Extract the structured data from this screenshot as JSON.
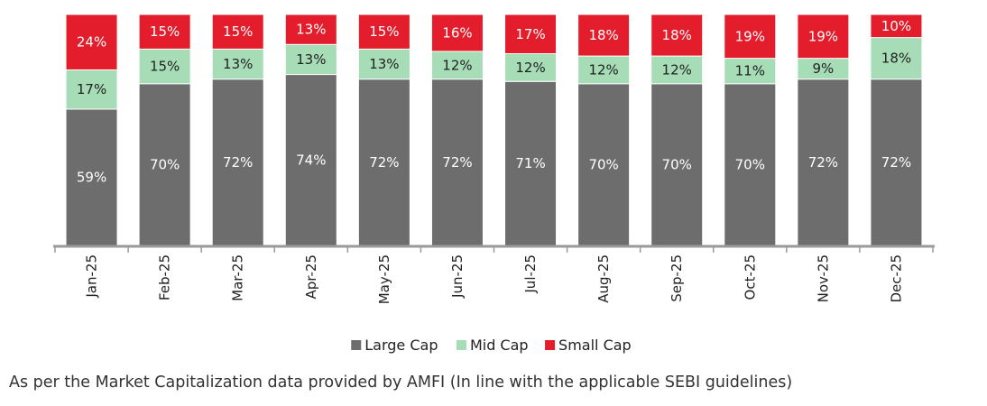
{
  "chart_data": {
    "type": "bar",
    "stacked": true,
    "normalized": true,
    "categories": [
      "Jan-25",
      "Feb-25",
      "Mar-25",
      "Apr-25",
      "May-25",
      "Jun-25",
      "Jul-25",
      "Aug-25",
      "Sep-25",
      "Oct-25",
      "Nov-25",
      "Dec-25"
    ],
    "series": [
      {
        "name": "Large Cap",
        "color": "#6d6d6d",
        "label_color": "#ffffff",
        "values": [
          59,
          70,
          72,
          74,
          72,
          72,
          71,
          70,
          70,
          70,
          72,
          72
        ],
        "labels": [
          "59%",
          "70%",
          "72%",
          "74%",
          "72%",
          "72%",
          "71%",
          "70%",
          "70%",
          "70%",
          "72%",
          "72%"
        ]
      },
      {
        "name": "Mid Cap",
        "color": "#a6dcb6",
        "label_color": "#222222",
        "values": [
          17,
          15,
          13,
          13,
          13,
          12,
          12,
          12,
          12,
          11,
          9,
          18
        ],
        "labels": [
          "17%",
          "15%",
          "13%",
          "13%",
          "13%",
          "12%",
          "12%",
          "12%",
          "12%",
          "11%",
          "9%",
          "18%"
        ]
      },
      {
        "name": "Small Cap",
        "color": "#e31d2b",
        "label_color": "#ffffff",
        "values": [
          24,
          15,
          15,
          13,
          15,
          16,
          17,
          18,
          18,
          19,
          19,
          10
        ],
        "labels": [
          "24%",
          "15%",
          "15%",
          "13%",
          "15%",
          "16%",
          "17%",
          "18%",
          "18%",
          "19%",
          "19%",
          "10%"
        ]
      }
    ],
    "legend": [
      "Large Cap",
      "Mid Cap",
      "Small Cap"
    ],
    "legend_position": "bottom",
    "title": "",
    "xlabel": "",
    "ylabel": "",
    "ylim": [
      0,
      100
    ],
    "grid": false
  },
  "caption": "As per the Market Capitalization data provided by AMFI (In line with the applicable SEBI guidelines)"
}
